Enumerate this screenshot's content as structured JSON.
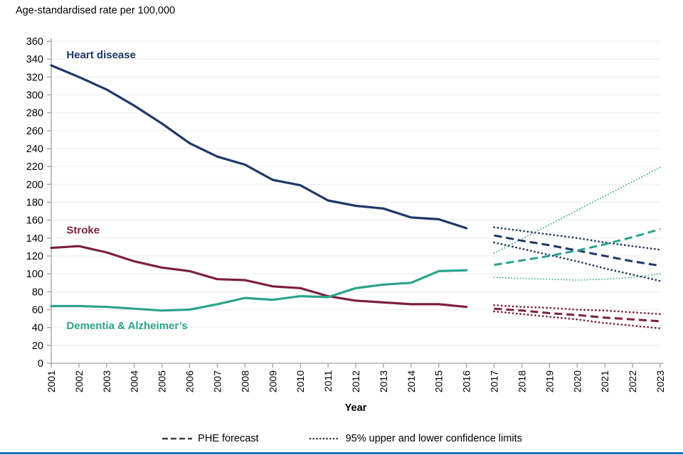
{
  "page": {
    "title": "Age-standardised rate per 100,000"
  },
  "legend": {
    "forecast_label": "PHE forecast",
    "ci_label": "95% upper and lower confidence limits"
  },
  "colors": {
    "heart": "#1F3864",
    "stroke": "#7C1F3D",
    "dementia": "#2BA38C",
    "legend_line": "#3f3f3f",
    "axis": "#A0A0A0",
    "grid": "#EFECEC",
    "bottom_bar": "#1d70b8"
  },
  "chart_data": {
    "type": "line",
    "title": "Age-standardised rate per 100,000",
    "xlabel": "Year",
    "ylabel": "",
    "ylim": [
      0,
      360
    ],
    "ytick_step": 20,
    "grid": true,
    "x_domains": {
      "actual": [
        2001,
        2002,
        2003,
        2004,
        2005,
        2006,
        2007,
        2008,
        2009,
        2010,
        2011,
        2012,
        2013,
        2014,
        2015,
        2016
      ],
      "forecast": [
        2017,
        2018,
        2019,
        2020,
        2021,
        2022,
        2023
      ]
    },
    "x_ticks": [
      2001,
      2002,
      2003,
      2004,
      2005,
      2006,
      2007,
      2008,
      2009,
      2010,
      2011,
      2012,
      2013,
      2014,
      2015,
      2016,
      2017,
      2018,
      2019,
      2020,
      2021,
      2022,
      2023
    ],
    "annotations": [
      {
        "text": "Heart disease",
        "color": "#1F3864",
        "x": 2001.55,
        "y": 345
      },
      {
        "text": "Stroke",
        "color": "#7C1F3D",
        "x": 2001.55,
        "y": 149
      },
      {
        "text": "Dementia & Alzheimer’s",
        "color": "#2BA38C",
        "x": 2001.55,
        "y": 42
      }
    ],
    "series": [
      {
        "name": "Heart disease",
        "color": "#1F3864",
        "line": "solid",
        "x_domain": "actual",
        "values": [
          333,
          320,
          306,
          288,
          268,
          246,
          231,
          222,
          205,
          199,
          182,
          176,
          173,
          163,
          161,
          151
        ]
      },
      {
        "name": "Stroke",
        "color": "#7C1F3D",
        "line": "solid",
        "x_domain": "actual",
        "values": [
          129,
          131,
          124,
          114,
          107,
          103,
          94,
          93,
          86,
          84,
          75,
          70,
          68,
          66,
          66,
          63
        ]
      },
      {
        "name": "Dementia & Alzheimer's",
        "color": "#2BA38C",
        "line": "solid",
        "x_domain": "actual",
        "values": [
          64,
          64,
          63,
          61,
          59,
          60,
          66,
          73,
          71,
          75,
          74,
          84,
          88,
          90,
          103,
          104
        ]
      },
      {
        "name": "Heart disease PHE forecast",
        "color": "#1F3864",
        "line": "dashed",
        "x_domain": "forecast",
        "values": [
          143,
          137,
          132,
          126,
          120,
          114,
          109
        ]
      },
      {
        "name": "Heart disease upper confidence limit",
        "color": "#1F3864",
        "line": "dotted",
        "x_domain": "forecast",
        "values": [
          152,
          148,
          144,
          140,
          135,
          131,
          127
        ]
      },
      {
        "name": "Heart disease lower confidence limit",
        "color": "#1F3864",
        "line": "dotted",
        "x_domain": "forecast",
        "values": [
          135,
          128,
          121,
          114,
          106,
          99,
          92
        ]
      },
      {
        "name": "Stroke PHE forecast",
        "color": "#7C1F3D",
        "line": "dashed",
        "x_domain": "forecast",
        "values": [
          61,
          59,
          56,
          54,
          51,
          49,
          47
        ]
      },
      {
        "name": "Stroke upper confidence limit",
        "color": "#7C1F3D",
        "line": "dotted",
        "x_domain": "forecast",
        "values": [
          65,
          63,
          62,
          60,
          59,
          57,
          55
        ]
      },
      {
        "name": "Stroke lower confidence limit",
        "color": "#7C1F3D",
        "line": "dotted",
        "x_domain": "forecast",
        "values": [
          58,
          55,
          52,
          49,
          45,
          42,
          39
        ]
      },
      {
        "name": "Dementia & Alzheimer's PHE forecast",
        "color": "#2BA38C",
        "line": "dashed",
        "x_domain": "forecast",
        "values": [
          110,
          115,
          120,
          126,
          133,
          141,
          150
        ]
      },
      {
        "name": "Dementia & Alzheimer's upper confidence limit",
        "color": "#2BA38C",
        "line": "dotted-fine",
        "x_domain": "forecast",
        "values": [
          123,
          139,
          155,
          171,
          187,
          203,
          219
        ]
      },
      {
        "name": "Dementia & Alzheimer's lower confidence limit",
        "color": "#2BA38C",
        "line": "dotted-fine",
        "x_domain": "forecast",
        "values": [
          96,
          95,
          94,
          93,
          94,
          96,
          100
        ]
      }
    ]
  }
}
